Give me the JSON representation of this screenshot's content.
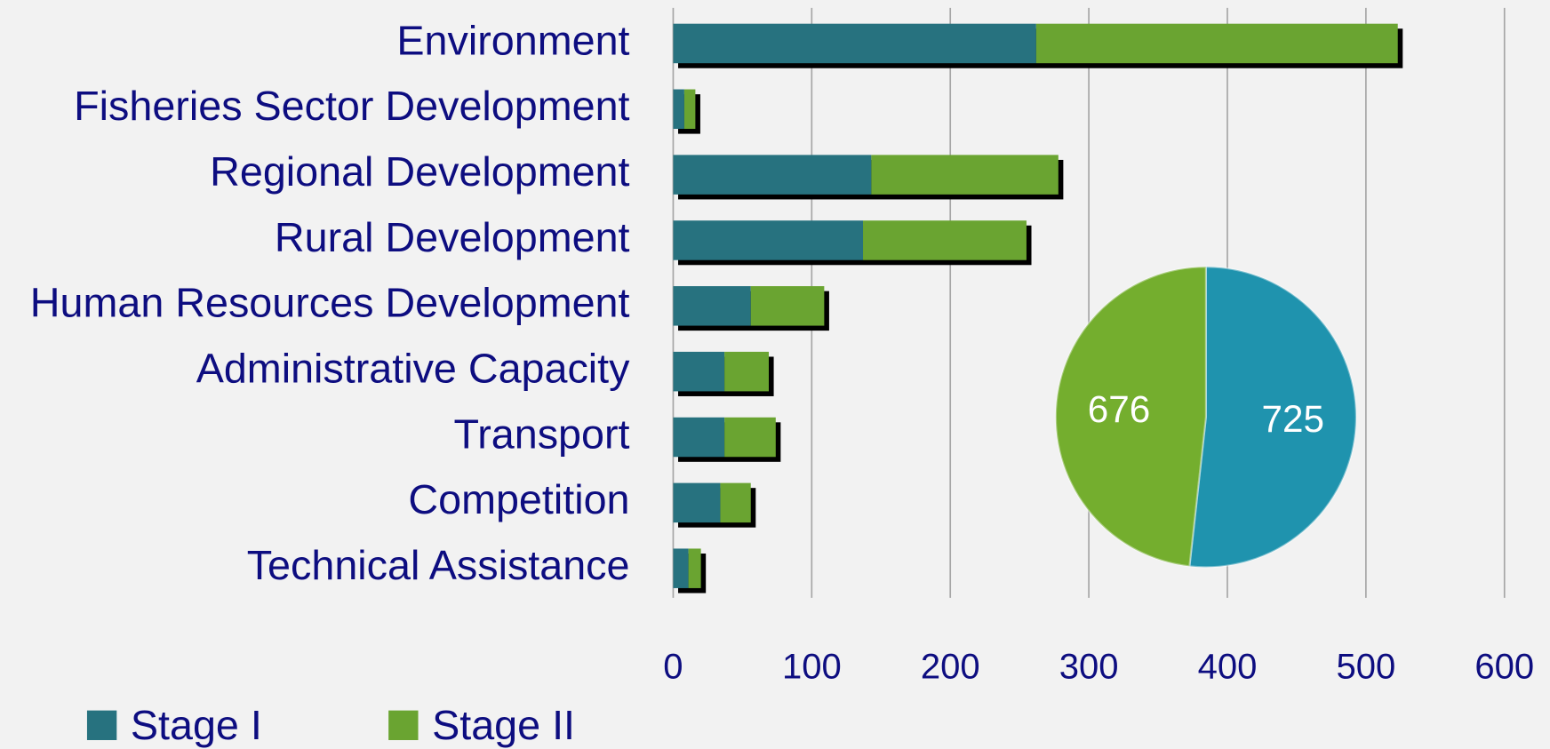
{
  "chart_data": [
    {
      "type": "bar",
      "stacked": true,
      "orientation": "horizontal",
      "categories": [
        "Environment",
        "Fisheries Sector Development",
        "Regional Development",
        "Rural Development",
        "Human Resources Development",
        "Administrative Capacity",
        "Transport",
        "Competition",
        "Technical Assistance"
      ],
      "series": [
        {
          "name": "Stage I",
          "color": "#27727f",
          "values": [
            262,
            8,
            143,
            137,
            56,
            37,
            37,
            34,
            11
          ]
        },
        {
          "name": "Stage II",
          "color": "#6aa431",
          "values": [
            261,
            8,
            135,
            118,
            53,
            32,
            37,
            22,
            9
          ]
        }
      ],
      "xlim": [
        0,
        600
      ],
      "xticks": [
        0,
        100,
        200,
        300,
        400,
        500,
        600
      ],
      "grid": true,
      "legend": "bottom"
    },
    {
      "type": "pie",
      "values": [
        725,
        676
      ],
      "colors": [
        "#1f93ae",
        "#74ae2e"
      ]
    }
  ]
}
